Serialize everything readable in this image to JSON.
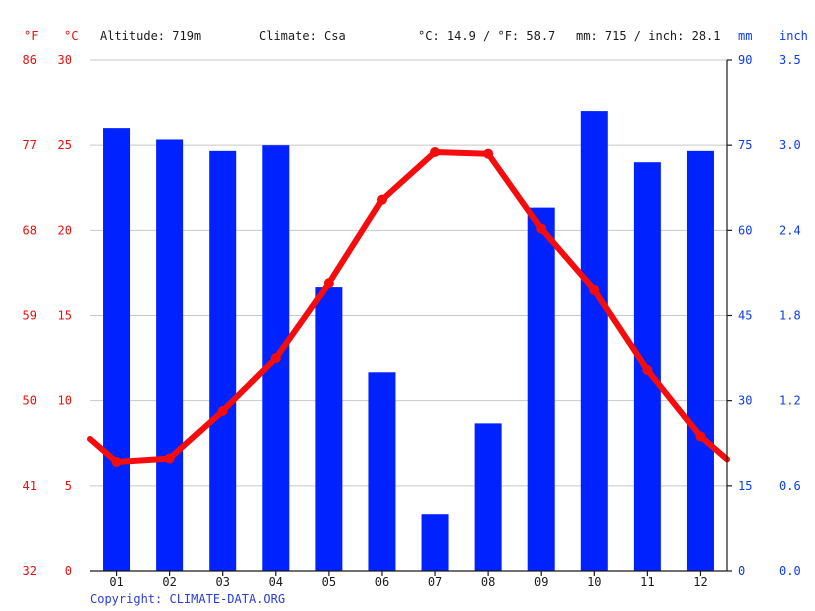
{
  "header": {
    "unit_f": "°F",
    "unit_c": "°C",
    "altitude": "Altitude: 719m",
    "climate": "Climate: Csa",
    "averages": "°C: 14.9 / °F: 58.7",
    "precip_total": "mm: 715 / inch: 28.1",
    "unit_mm": "mm",
    "unit_inch": "inch"
  },
  "copyright": "Copyright: CLIMATE-DATA.ORG",
  "colors": {
    "precipitation": "#0022ff",
    "temperature": "#f50d0d",
    "left_axis": "#e8100c",
    "right_axis": "#0a3cf0"
  },
  "chart_data": {
    "type": "bar",
    "categories": [
      "01",
      "02",
      "03",
      "04",
      "05",
      "06",
      "07",
      "08",
      "09",
      "10",
      "11",
      "12"
    ],
    "series": [
      {
        "type": "bar",
        "axis": "right",
        "unit": "mm",
        "values": [
          78,
          76,
          74,
          75,
          50,
          35,
          10,
          26,
          64,
          81,
          72,
          74
        ]
      },
      {
        "type": "line",
        "axis": "left",
        "unit": "°C",
        "values": [
          6.4,
          6.6,
          9.4,
          12.5,
          16.9,
          21.8,
          24.6,
          24.5,
          20.1,
          16.5,
          11.8,
          7.9
        ]
      }
    ],
    "left_axis": {
      "celsius_ticks": [
        "0",
        "5",
        "10",
        "15",
        "20",
        "25",
        "30"
      ],
      "fahrenheit_ticks": [
        "32",
        "41",
        "50",
        "59",
        "68",
        "77",
        "86"
      ],
      "ylim": [
        0,
        30
      ]
    },
    "right_axis": {
      "mm_ticks": [
        "0",
        "15",
        "30",
        "45",
        "60",
        "75",
        "90"
      ],
      "inch_ticks": [
        "0.0",
        "0.6",
        "1.2",
        "1.8",
        "2.4",
        "3.0",
        "3.5"
      ],
      "ylim": [
        0,
        90
      ]
    },
    "grid": true
  }
}
